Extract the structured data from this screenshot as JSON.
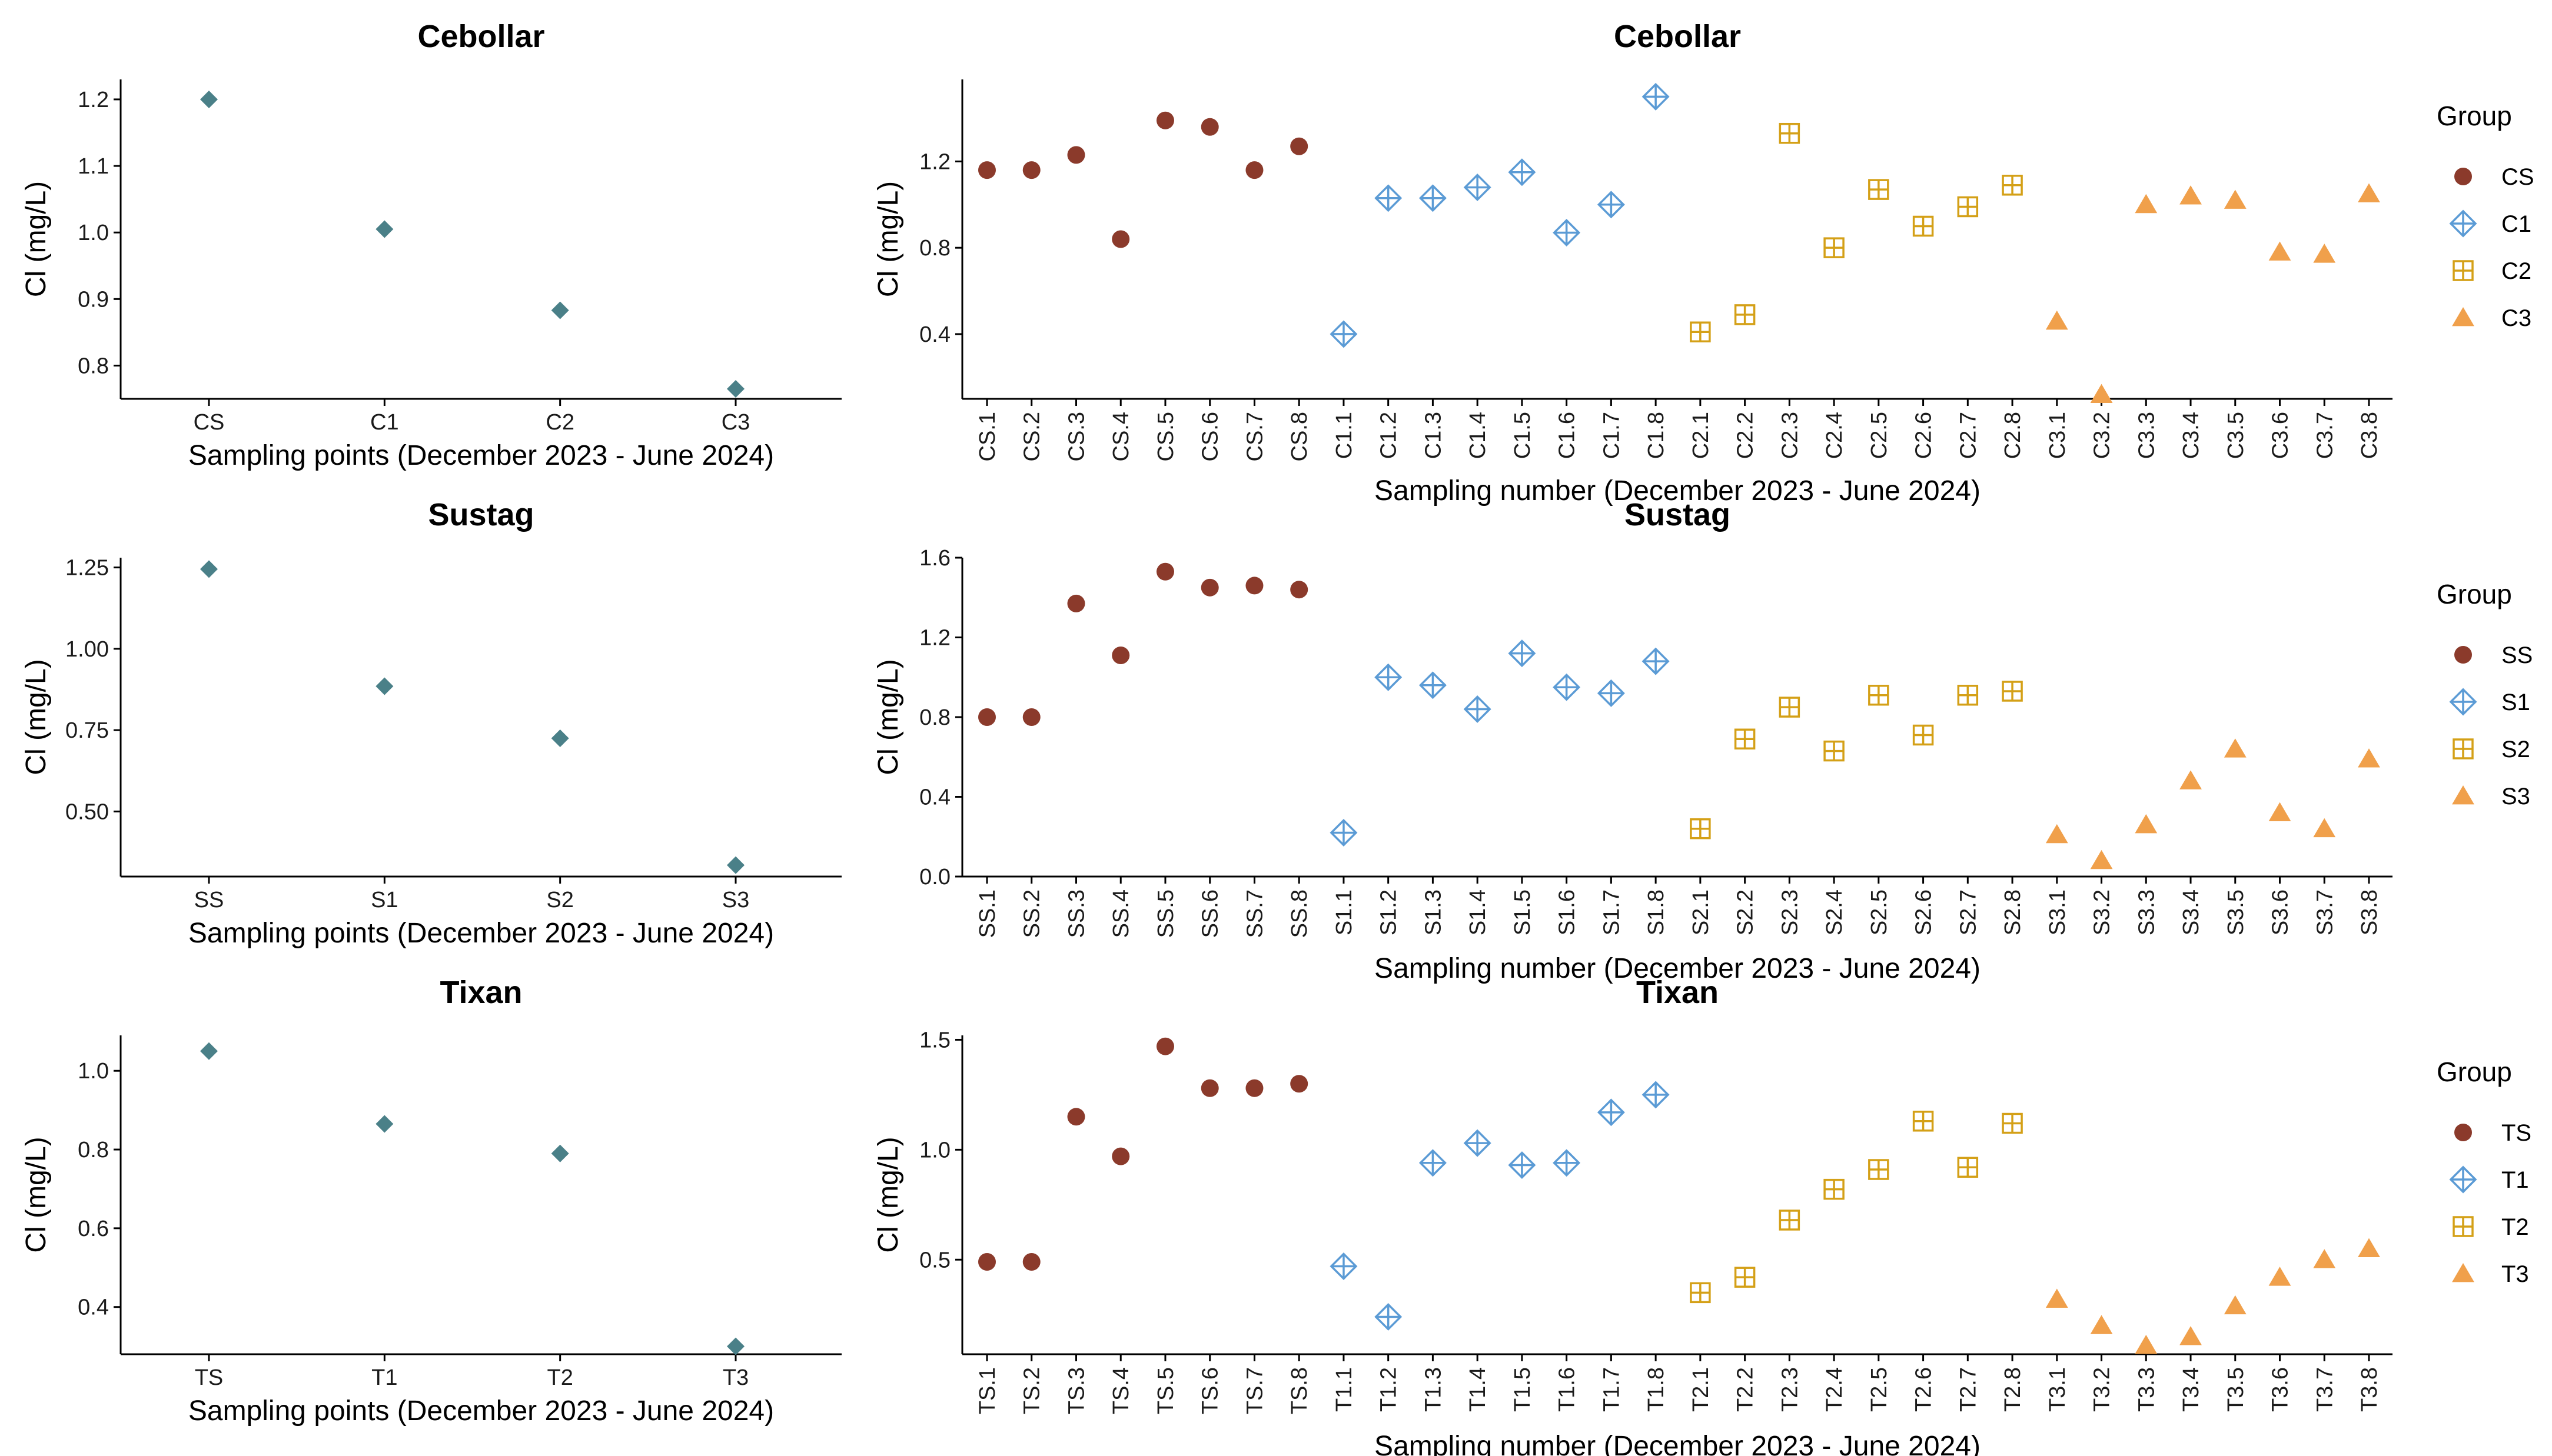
{
  "styles": {
    "point_color": "#4a8088",
    "group_colors": [
      "#8b3a2b",
      "#5b9bd5",
      "#d4a017",
      "#f0a04b"
    ],
    "group_shapes": [
      "circle",
      "diamond-plus",
      "square-plus",
      "triangle"
    ]
  },
  "chart_data": [
    {
      "id": "cebollar-points",
      "type": "scatter",
      "title": "Cebollar",
      "xlabel": "Sampling points (December 2023 - June 2024)",
      "ylabel": "Cl (mg/L)",
      "categories": [
        "CS",
        "C1",
        "C2",
        "C3"
      ],
      "values": [
        1.2,
        1.005,
        0.883,
        0.765
      ],
      "ylim": [
        0.75,
        1.23
      ],
      "yticks": [
        0.8,
        0.9,
        1.0,
        1.1,
        1.2
      ],
      "ytick_labels": [
        "0.8",
        "0.9",
        "1.0",
        "1.1",
        "1.2"
      ]
    },
    {
      "id": "cebollar-samples",
      "type": "scatter",
      "title": "Cebollar",
      "xlabel": "Sampling number (December 2023 - June 2024)",
      "ylabel": "Cl (mg/L)",
      "categories": [
        "CS.1",
        "CS.2",
        "CS.3",
        "CS.4",
        "CS.5",
        "CS.6",
        "CS.7",
        "CS.8",
        "C1.1",
        "C1.2",
        "C1.3",
        "C1.4",
        "C1.5",
        "C1.6",
        "C1.7",
        "C1.8",
        "C2.1",
        "C2.2",
        "C2.3",
        "C2.4",
        "C2.5",
        "C2.6",
        "C2.7",
        "C2.8",
        "C3.1",
        "C3.2",
        "C3.3",
        "C3.4",
        "C3.5",
        "C3.6",
        "C3.7",
        "C3.8"
      ],
      "ylim": [
        0.1,
        1.58
      ],
      "yticks": [
        0.4,
        0.8,
        1.2
      ],
      "ytick_labels": [
        "0.4",
        "0.8",
        "1.2"
      ],
      "legend_title": "Group",
      "series": [
        {
          "name": "CS",
          "values": [
            1.16,
            1.16,
            1.23,
            0.84,
            1.39,
            1.36,
            1.16,
            1.27
          ]
        },
        {
          "name": "C1",
          "values": [
            0.4,
            1.03,
            1.03,
            1.08,
            1.15,
            0.87,
            1.0,
            1.5
          ]
        },
        {
          "name": "C2",
          "values": [
            0.41,
            0.49,
            1.33,
            0.8,
            1.07,
            0.9,
            0.99,
            1.09
          ]
        },
        {
          "name": "C3",
          "values": [
            0.46,
            0.12,
            1.0,
            1.04,
            1.02,
            0.78,
            0.77,
            1.05
          ]
        }
      ]
    },
    {
      "id": "sustag-points",
      "type": "scatter",
      "title": "Sustag",
      "xlabel": "Sampling points (December 2023 - June 2024)",
      "ylabel": "Cl (mg/L)",
      "categories": [
        "SS",
        "S1",
        "S2",
        "S3"
      ],
      "values": [
        1.245,
        0.885,
        0.725,
        0.335
      ],
      "ylim": [
        0.3,
        1.28
      ],
      "yticks": [
        0.5,
        0.75,
        1.0,
        1.25
      ],
      "ytick_labels": [
        "0.50",
        "0.75",
        "1.00",
        "1.25"
      ]
    },
    {
      "id": "sustag-samples",
      "type": "scatter",
      "title": "Sustag",
      "xlabel": "Sampling number (December 2023 - June 2024)",
      "ylabel": "Cl (mg/L)",
      "categories": [
        "SS.1",
        "SS.2",
        "SS.3",
        "SS.4",
        "SS.5",
        "SS.6",
        "SS.7",
        "SS.8",
        "S1.1",
        "S1.2",
        "S1.3",
        "S1.4",
        "S1.5",
        "S1.6",
        "S1.7",
        "S1.8",
        "S2.1",
        "S2.2",
        "S2.3",
        "S2.4",
        "S2.5",
        "S2.6",
        "S2.7",
        "S2.8",
        "S3.1",
        "S3.2",
        "S3.3",
        "S3.4",
        "S3.5",
        "S3.6",
        "S3.7",
        "S3.8"
      ],
      "ylim": [
        0.0,
        1.6
      ],
      "yticks": [
        0.0,
        0.4,
        0.8,
        1.2,
        1.6
      ],
      "ytick_labels": [
        "0.0",
        "0.4",
        "0.8",
        "1.2",
        "1.6"
      ],
      "legend_title": "Group",
      "series": [
        {
          "name": "SS",
          "values": [
            0.8,
            0.8,
            1.37,
            1.11,
            1.53,
            1.45,
            1.46,
            1.44
          ]
        },
        {
          "name": "S1",
          "values": [
            0.22,
            1.0,
            0.96,
            0.84,
            1.12,
            0.95,
            0.92,
            1.08
          ]
        },
        {
          "name": "S2",
          "values": [
            0.24,
            0.69,
            0.85,
            0.63,
            0.91,
            0.71,
            0.91,
            0.93
          ]
        },
        {
          "name": "S3",
          "values": [
            0.21,
            0.08,
            0.26,
            0.48,
            0.64,
            0.32,
            0.24,
            0.59
          ]
        }
      ]
    },
    {
      "id": "tixan-points",
      "type": "scatter",
      "title": "Tixan",
      "xlabel": "Sampling points (December 2023 - June 2024)",
      "ylabel": "Cl (mg/L)",
      "categories": [
        "TS",
        "T1",
        "T2",
        "T3"
      ],
      "values": [
        1.05,
        0.865,
        0.79,
        0.3
      ],
      "ylim": [
        0.28,
        1.09
      ],
      "yticks": [
        0.4,
        0.6,
        0.8,
        1.0
      ],
      "ytick_labels": [
        "0.4",
        "0.6",
        "0.8",
        "1.0"
      ]
    },
    {
      "id": "tixan-samples",
      "type": "scatter",
      "title": "Tixan",
      "xlabel": "Sampling number (December 2023 - June 2024)",
      "ylabel": "Cl (mg/L)",
      "categories": [
        "TS.1",
        "TS.2",
        "TS.3",
        "TS.4",
        "TS.5",
        "TS.6",
        "TS.7",
        "TS.8",
        "T1.1",
        "T1.2",
        "T1.3",
        "T1.4",
        "T1.5",
        "T1.6",
        "T1.7",
        "T1.8",
        "T2.1",
        "T2.2",
        "T2.3",
        "T2.4",
        "T2.5",
        "T2.6",
        "T2.7",
        "T2.8",
        "T3.1",
        "T3.2",
        "T3.3",
        "T3.4",
        "T3.5",
        "T3.6",
        "T3.7",
        "T3.8"
      ],
      "ylim": [
        0.07,
        1.52
      ],
      "yticks": [
        0.5,
        1.0,
        1.5
      ],
      "ytick_labels": [
        "0.5",
        "1.0",
        "1.5"
      ],
      "legend_title": "Group",
      "series": [
        {
          "name": "TS",
          "values": [
            0.49,
            0.49,
            1.15,
            0.97,
            1.47,
            1.28,
            1.28,
            1.3
          ]
        },
        {
          "name": "T1",
          "values": [
            0.47,
            0.24,
            0.94,
            1.03,
            0.93,
            0.94,
            1.17,
            1.25
          ]
        },
        {
          "name": "T2",
          "values": [
            0.35,
            0.42,
            0.68,
            0.82,
            0.91,
            1.13,
            0.92,
            1.12
          ]
        },
        {
          "name": "T3",
          "values": [
            0.32,
            0.2,
            0.11,
            0.15,
            0.29,
            0.42,
            0.5,
            0.55
          ]
        }
      ]
    }
  ]
}
